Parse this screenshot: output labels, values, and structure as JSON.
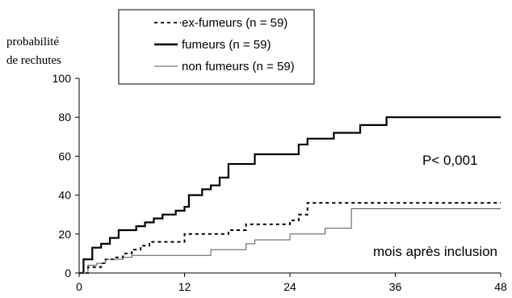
{
  "chart_data": {
    "type": "line",
    "step": true,
    "ylabel_line1": "probabilité",
    "ylabel_line2": "de rechutes",
    "xlabel": "mois après inclusion",
    "annotation": "P< 0,001",
    "xlim": [
      0,
      48
    ],
    "ylim": [
      0,
      100
    ],
    "xticks": [
      0,
      12,
      24,
      36,
      48
    ],
    "yticks": [
      0,
      20,
      40,
      60,
      80,
      100
    ],
    "grid": false,
    "legend_position": "top-left",
    "series": [
      {
        "name": "ex-fumeurs (n = 59)",
        "style": "dashed",
        "color": "#000000",
        "points": [
          [
            0,
            0
          ],
          [
            1,
            3
          ],
          [
            2.5,
            5
          ],
          [
            3,
            7
          ],
          [
            4,
            8
          ],
          [
            5,
            10
          ],
          [
            6,
            12
          ],
          [
            7,
            14
          ],
          [
            8,
            16
          ],
          [
            11,
            16
          ],
          [
            12,
            20
          ],
          [
            16,
            20
          ],
          [
            17,
            22
          ],
          [
            18,
            22
          ],
          [
            19,
            25
          ],
          [
            23,
            25
          ],
          [
            24,
            27
          ],
          [
            25,
            30
          ],
          [
            26,
            36
          ],
          [
            48,
            36
          ]
        ]
      },
      {
        "name": "fumeurs (n = 59)",
        "style": "solid-thick",
        "color": "#000000",
        "points": [
          [
            0,
            0
          ],
          [
            0.5,
            7
          ],
          [
            1.5,
            13
          ],
          [
            2.5,
            15
          ],
          [
            3.5,
            18
          ],
          [
            4.5,
            22
          ],
          [
            6.5,
            24
          ],
          [
            7.5,
            26
          ],
          [
            8.5,
            28
          ],
          [
            9.5,
            30
          ],
          [
            11,
            32
          ],
          [
            12,
            34
          ],
          [
            12.5,
            40
          ],
          [
            14,
            43
          ],
          [
            15,
            45
          ],
          [
            16,
            49
          ],
          [
            17,
            56
          ],
          [
            20,
            61
          ],
          [
            25,
            66
          ],
          [
            26,
            69
          ],
          [
            29,
            72
          ],
          [
            32,
            76
          ],
          [
            35,
            80
          ],
          [
            48,
            80
          ]
        ]
      },
      {
        "name": "non fumeurs (n = 59)",
        "style": "solid-thin",
        "color": "#555555",
        "points": [
          [
            0,
            0
          ],
          [
            1,
            4
          ],
          [
            2,
            5
          ],
          [
            3,
            7
          ],
          [
            5,
            8
          ],
          [
            6,
            9
          ],
          [
            15,
            9
          ],
          [
            15,
            12
          ],
          [
            19,
            15
          ],
          [
            20,
            17
          ],
          [
            24,
            17
          ],
          [
            24,
            20
          ],
          [
            28,
            20
          ],
          [
            28,
            23
          ],
          [
            31,
            23
          ],
          [
            31,
            33
          ],
          [
            48,
            33
          ]
        ]
      }
    ]
  }
}
